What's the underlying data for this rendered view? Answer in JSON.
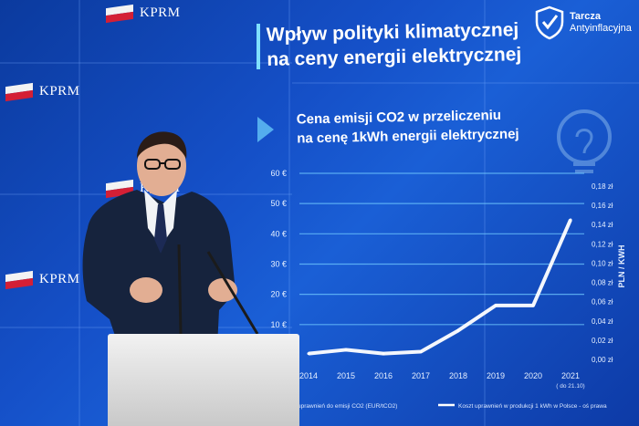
{
  "logos": {
    "kprm_text": "KPRM",
    "tarcza_title": "Tarcza",
    "tarcza_subtitle": "Antyinflacyjna"
  },
  "slide": {
    "title_line1": "Wpływ polityki klimatycznej",
    "title_line2": "na ceny energii elektrycznej",
    "subtitle_line1": "Cena emisji CO2 w przeliczeniu",
    "subtitle_line2": "na cenę 1kWh energii elektrycznej"
  },
  "chart_data": {
    "type": "line",
    "x": [
      "2014",
      "2015",
      "2016",
      "2017",
      "2018",
      "2019",
      "2020",
      "2021"
    ],
    "x_note": "( do 21.10)",
    "left_axis_ticks": [
      "10 €",
      "20 €",
      "30 €",
      "40 €",
      "50 €",
      "60 €"
    ],
    "right_axis_ticks": [
      "0,00 zł",
      "0,02 zł",
      "0,04 zł",
      "0,06 zł",
      "0,08 zł",
      "0,10 zł",
      "0,12 zł",
      "0,14 zł",
      "0,16 zł",
      "0,18 zł"
    ],
    "right_axis_label": "PLN / KWH",
    "ylim_left": [
      10,
      60
    ],
    "ylim_right": [
      0,
      0.18
    ],
    "series": [
      {
        "name": "Koszt uprawnień w produkcji 1 kWh w Polsce - oś prawa",
        "values": [
          0.006,
          0.01,
          0.006,
          0.008,
          0.03,
          0.056,
          0.056,
          0.145
        ]
      }
    ],
    "legend_left": "uprawnień do emisji CO2 (EUR/tCO2)",
    "legend_right": "Koszt uprawnień w produkcji 1 kWh w Polsce - oś prawa",
    "colors": {
      "line": "#ffffff",
      "grid": "#6fc8ff"
    }
  }
}
